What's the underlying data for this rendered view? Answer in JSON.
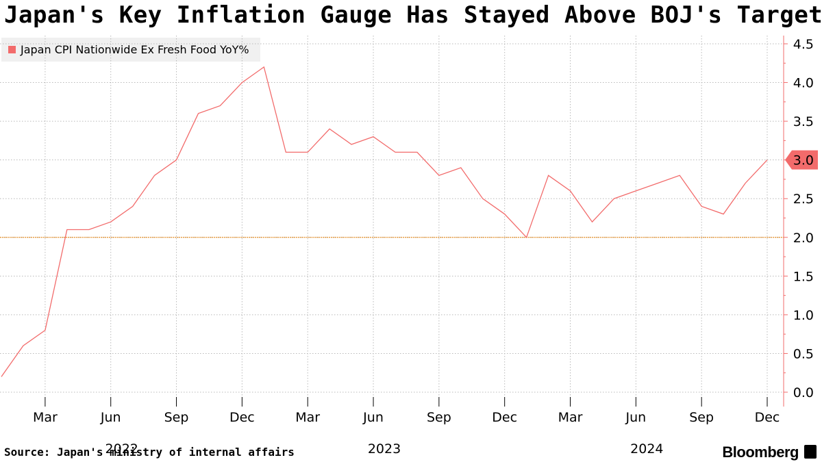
{
  "header": {
    "title": "Japan's Key Inflation Gauge Has Stayed Above BOJ's Target"
  },
  "legend": {
    "label": "Japan CPI Nationwide Ex Fresh Food YoY%",
    "color": "#f26b6b"
  },
  "footer": {
    "source": "Source: Japan's ministry of internal affairs",
    "brand": "Bloomberg"
  },
  "chart_data": {
    "type": "line",
    "title": "Japan's Key Inflation Gauge Has Stayed Above BOJ's Target",
    "xlabel": "",
    "ylabel": "",
    "ylim": [
      0,
      4.6
    ],
    "y_ticks": [
      "0.0",
      "0.5",
      "1.0",
      "1.5",
      "2.0",
      "2.5",
      "3.0",
      "3.5",
      "4.0",
      "4.5"
    ],
    "y_axis_side": "right",
    "x": [
      "2022-01",
      "2022-02",
      "2022-03",
      "2022-04",
      "2022-05",
      "2022-06",
      "2022-07",
      "2022-08",
      "2022-09",
      "2022-10",
      "2022-11",
      "2022-12",
      "2023-01",
      "2023-02",
      "2023-03",
      "2023-04",
      "2023-05",
      "2023-06",
      "2023-07",
      "2023-08",
      "2023-09",
      "2023-10",
      "2023-11",
      "2023-12",
      "2024-01",
      "2024-02",
      "2024-03",
      "2024-04",
      "2024-05",
      "2024-06",
      "2024-07",
      "2024-08",
      "2024-09",
      "2024-10",
      "2024-11",
      "2024-12"
    ],
    "month_ticks": [
      "Mar",
      "Jun",
      "Sep",
      "Dec",
      "Mar",
      "Jun",
      "Sep",
      "Dec",
      "Mar",
      "Jun",
      "Sep",
      "Dec"
    ],
    "month_tick_index": [
      2,
      5,
      8,
      11,
      14,
      17,
      20,
      23,
      26,
      29,
      32,
      35
    ],
    "year_labels": [
      "2022",
      "2023",
      "2024"
    ],
    "year_label_index": [
      5,
      17,
      29
    ],
    "series": [
      {
        "name": "Japan CPI Nationwide Ex Fresh Food YoY%",
        "color": "#f26b6b",
        "values": [
          0.2,
          0.6,
          0.8,
          2.1,
          2.1,
          2.2,
          2.4,
          2.8,
          3.0,
          3.6,
          3.7,
          4.0,
          4.2,
          3.1,
          3.1,
          3.4,
          3.2,
          3.3,
          3.1,
          3.1,
          2.8,
          2.9,
          2.5,
          2.3,
          2.0,
          2.8,
          2.6,
          2.2,
          2.5,
          2.6,
          2.7,
          2.8,
          2.4,
          2.3,
          2.7,
          3.0
        ]
      }
    ],
    "reference_line": {
      "value": 2.0,
      "color": "#e8a04a"
    },
    "last_value_label": "3.0"
  }
}
